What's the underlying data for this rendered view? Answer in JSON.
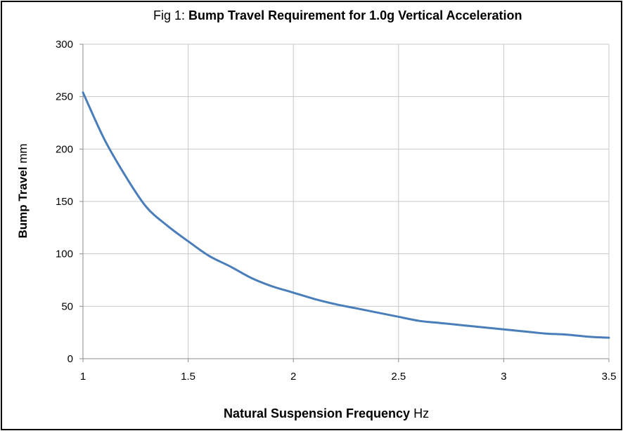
{
  "chart_data": {
    "type": "line",
    "title_prefix": "Fig 1:",
    "title": "Bump Travel Requirement for 1.0g Vertical Acceleration",
    "xlabel_main": "Natural Suspension Frequency",
    "xlabel_unit": "Hz",
    "ylabel_main": "Bump Travel",
    "ylabel_unit": "mm",
    "xlim": [
      1,
      3.5
    ],
    "ylim": [
      0,
      300
    ],
    "xticks": [
      1,
      1.5,
      2,
      2.5,
      3,
      3.5
    ],
    "xtick_labels": [
      "1",
      "1.5",
      "2",
      "2.5",
      "3",
      "3.5"
    ],
    "yticks": [
      0,
      50,
      100,
      150,
      200,
      250,
      300
    ],
    "ytick_labels": [
      "0",
      "50",
      "100",
      "150",
      "200",
      "250",
      "300"
    ],
    "grid": true,
    "series": [
      {
        "color": "#4a7ebb",
        "x": [
          1.0,
          1.1,
          1.2,
          1.3,
          1.4,
          1.5,
          1.6,
          1.7,
          1.8,
          1.9,
          2.0,
          2.1,
          2.2,
          2.3,
          2.4,
          2.5,
          2.6,
          2.7,
          2.8,
          2.9,
          3.0,
          3.1,
          3.2,
          3.3,
          3.4,
          3.5
        ],
        "y": [
          254,
          210,
          175,
          145,
          127,
          112,
          98,
          88,
          77,
          69,
          63,
          57,
          52,
          48,
          44,
          40,
          36,
          34,
          32,
          30,
          28,
          26,
          24,
          23,
          21,
          20
        ]
      }
    ]
  }
}
